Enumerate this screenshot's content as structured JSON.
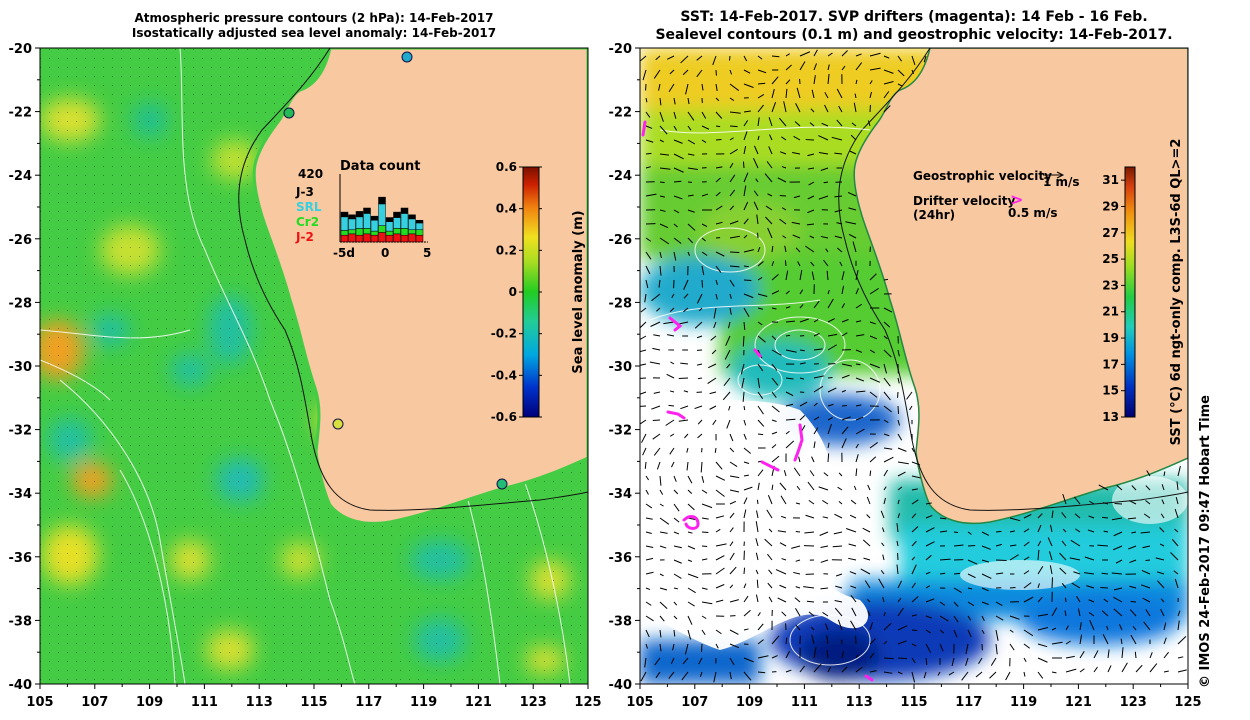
{
  "left_panel": {
    "title_line1": "Atmospheric pressure contours (2 hPa): 14-Feb-2017",
    "title_line2": "Isostatically adjusted sea level anomaly: 14-Feb-2017",
    "colorbar": {
      "label": "Sea level anomaly (m)",
      "ticks": [
        "0.6",
        "0.4",
        "0.2",
        "0",
        "-0.2",
        "-0.4",
        "-0.6"
      ],
      "range": [
        -0.6,
        0.6
      ]
    },
    "data_count": {
      "title": "Data count",
      "max_label": "420",
      "legend": [
        {
          "label": "J-3",
          "color": "#000000"
        },
        {
          "label": "SRL",
          "color": "#36d0e0"
        },
        {
          "label": "Cr2",
          "color": "#22dd22"
        },
        {
          "label": "J-2",
          "color": "#ee1111"
        }
      ],
      "x_ticks": [
        "-5d",
        "0",
        "5"
      ],
      "bars": [
        {
          "day": -6,
          "J-2": 0.1,
          "Cr2": 0.07,
          "SRL": 0.2,
          "J-3": 0.07
        },
        {
          "day": -5,
          "J-2": 0.12,
          "Cr2": 0.06,
          "SRL": 0.16,
          "J-3": 0.06
        },
        {
          "day": -4,
          "J-2": 0.1,
          "Cr2": 0.1,
          "SRL": 0.17,
          "J-3": 0.08
        },
        {
          "day": -3,
          "J-2": 0.12,
          "Cr2": 0.08,
          "SRL": 0.22,
          "J-3": 0.08
        },
        {
          "day": -2,
          "J-2": 0.1,
          "Cr2": 0.06,
          "SRL": 0.16,
          "J-3": 0.06
        },
        {
          "day": -1,
          "J-2": 0.14,
          "Cr2": 0.1,
          "SRL": 0.32,
          "J-3": 0.1
        },
        {
          "day": 0,
          "J-2": 0.1,
          "Cr2": 0.06,
          "SRL": 0.14,
          "J-3": 0.06
        },
        {
          "day": 1,
          "J-2": 0.12,
          "Cr2": 0.08,
          "SRL": 0.16,
          "J-3": 0.08
        },
        {
          "day": 2,
          "J-2": 0.1,
          "Cr2": 0.1,
          "SRL": 0.22,
          "J-3": 0.08
        },
        {
          "day": 3,
          "J-2": 0.12,
          "Cr2": 0.06,
          "SRL": 0.16,
          "J-3": 0.06
        },
        {
          "day": 4,
          "J-2": 0.1,
          "Cr2": 0.08,
          "SRL": 0.1,
          "J-3": 0.04
        }
      ]
    }
  },
  "right_panel": {
    "title_line1": "SST: 14-Feb-2017. SVP drifters (magenta): 14 Feb - 16 Feb.",
    "title_line2": "Sealevel contours (0.1 m) and geostrophic velocity: 14-Feb-2017.",
    "geo_velocity_label": "Geostrophic velocity",
    "geo_velocity_unit": "1 m/s",
    "drifter_label": "Drifter velocity",
    "drifter_label2": "(24hr)",
    "drifter_unit": "0.5 m/s",
    "drifter_symbol": ">",
    "colorbar": {
      "label": "SST (°C) 6d ngt-only comp. L3S-6d QL>=2",
      "ticks": [
        "31",
        "29",
        "27",
        "25",
        "23",
        "21",
        "19",
        "17",
        "15",
        "13"
      ],
      "range": [
        13,
        32
      ]
    }
  },
  "axes": {
    "lon_ticks": [
      "105",
      "107",
      "109",
      "111",
      "113",
      "115",
      "117",
      "119",
      "121",
      "123",
      "125"
    ],
    "lat_ticks": [
      "-20",
      "-22",
      "-24",
      "-26",
      "-28",
      "-30",
      "-32",
      "-34",
      "-36",
      "-38",
      "-40"
    ],
    "lon_range": [
      105,
      125
    ],
    "lat_range": [
      -20,
      -40
    ]
  },
  "credit": "© IMOS 24-Feb-2017 09:47 Hobart Time",
  "colors": {
    "land": "#f8c8a0",
    "coast": "#000000",
    "drifter": "#ff22ee"
  }
}
